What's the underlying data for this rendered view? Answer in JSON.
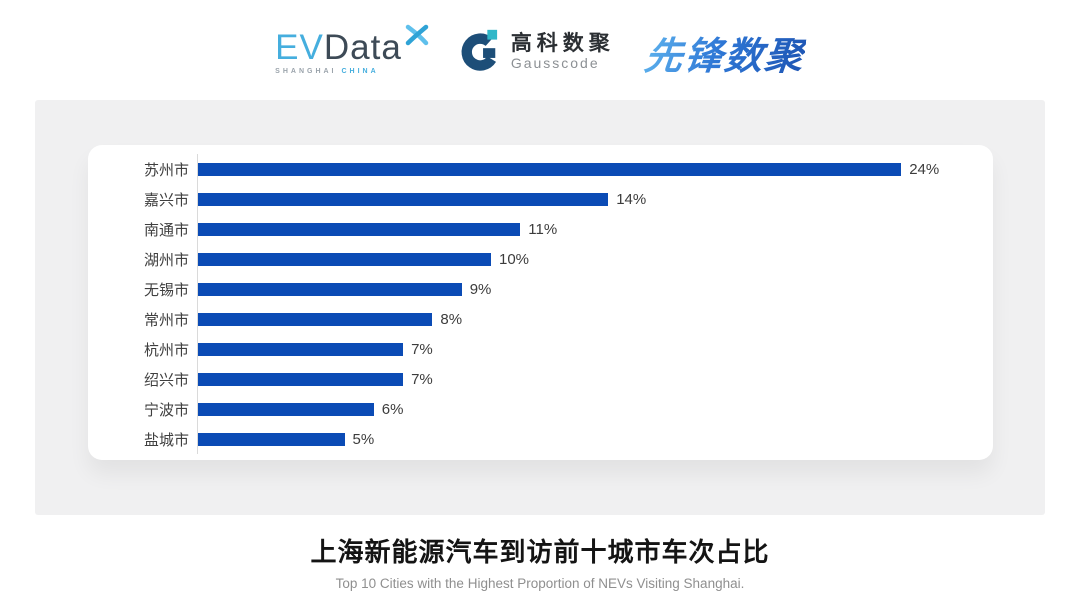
{
  "header": {
    "evdata": {
      "ev": "EV",
      "data": "Data",
      "sub_left": "SHANGHAI",
      "sub_right": "CHINA"
    },
    "gausscode": {
      "cn": "高科数聚",
      "en": "Gausscode"
    },
    "pioneer": {
      "text": "先锋数聚"
    }
  },
  "colors": {
    "bar_blue": "#0B4BB5",
    "evdata_blue": "#45AEDE",
    "evdata_dark": "#3D4A56",
    "gausscode_navy": "#1D4E78",
    "gausscode_teal": "#2FB7C8",
    "panel_gray": "#F0F0F1",
    "axis_gray": "#DADADA"
  },
  "chart_data": {
    "type": "bar",
    "orientation": "horizontal",
    "categories": [
      "苏州市",
      "嘉兴市",
      "南通市",
      "湖州市",
      "无锡市",
      "常州市",
      "杭州市",
      "绍兴市",
      "宁波市",
      "盐城市"
    ],
    "values": [
      24,
      14,
      11,
      10,
      9,
      8,
      7,
      7,
      6,
      5
    ],
    "value_labels": [
      "24%",
      "14%",
      "11%",
      "10%",
      "9%",
      "8%",
      "7%",
      "7%",
      "6%",
      "5%"
    ],
    "unit": "%",
    "xlim": [
      0,
      24
    ],
    "grid": false,
    "legend": "none",
    "bar_color": "#0B4BB5",
    "title": "上海新能源汽车到访前十城市车次占比",
    "subtitle": "Top 10 Cities with the Highest Proportion of  NEVs Visiting Shanghai."
  },
  "footer": {
    "title": "上海新能源汽车到访前十城市车次占比",
    "subtitle": "Top 10 Cities with the Highest Proportion of  NEVs Visiting Shanghai."
  }
}
